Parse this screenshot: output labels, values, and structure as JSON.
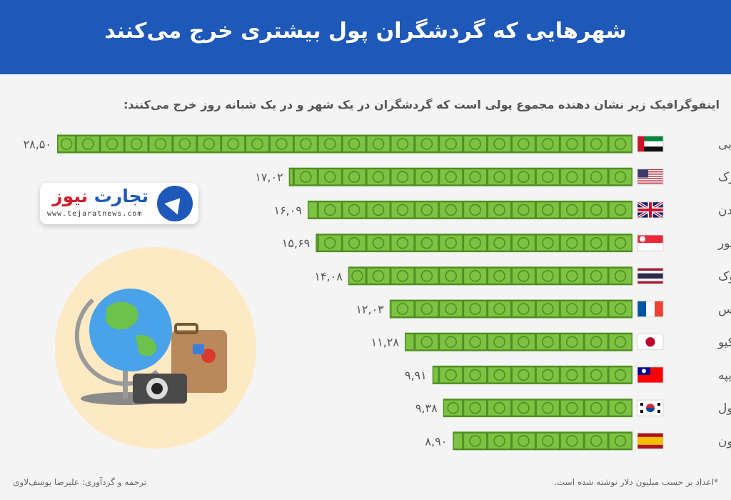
{
  "header": {
    "title": "شهرهایی که گردشگران پول بیشتری خرج می‌کنند"
  },
  "subtitle": "اینفوگرافیک زیر نشان دهنده مجموع پولی است که گردشگران در یک شهر و در یک شبانه روز خرج می‌کنند:",
  "logo": {
    "name_main": "تجارت",
    "name_accent": "نیوز",
    "url": "www.tejaratnews.com"
  },
  "footnote": "*اعداد بر حسب میلیون دلار نوشته شده است.",
  "credit": "ترجمه و گردآوری: علیرضا یوسف‌لاوی",
  "colors": {
    "header": "#1e58b8",
    "bill": "#7dc242",
    "bill_dark": "#4f8f22",
    "text": "#555555"
  },
  "chart_data": {
    "type": "bar",
    "orientation": "horizontal",
    "title": "شهرهایی که گردشگران پول بیشتری خرج می‌کنند",
    "unit": "میلیون دلار",
    "categories": [
      "دبی",
      "نیویورک",
      "لندن",
      "سنگاپور",
      "بانکوک",
      "پاریس",
      "توکیو",
      "تایپه",
      "سئول",
      "بارسلون"
    ],
    "flags": [
      "uae-flag",
      "usa-flag",
      "uk-flag",
      "singapore-flag",
      "thailand-flag",
      "france-flag",
      "japan-flag",
      "taiwan-flag",
      "south-korea-flag",
      "spain-flag"
    ],
    "values": [
      28.5,
      17.02,
      16.09,
      15.69,
      14.08,
      12.03,
      11.28,
      9.91,
      9.38,
      8.9
    ],
    "value_labels": [
      "۲۸,۵۰",
      "۱۷,۰۲",
      "۱۶,۰۹",
      "۱۵,۶۹",
      "۱۴,۰۸",
      "۱۲,۰۳",
      "۱۱,۲۸",
      "۹,۹۱",
      "۹,۳۸",
      "۸,۹۰"
    ]
  }
}
